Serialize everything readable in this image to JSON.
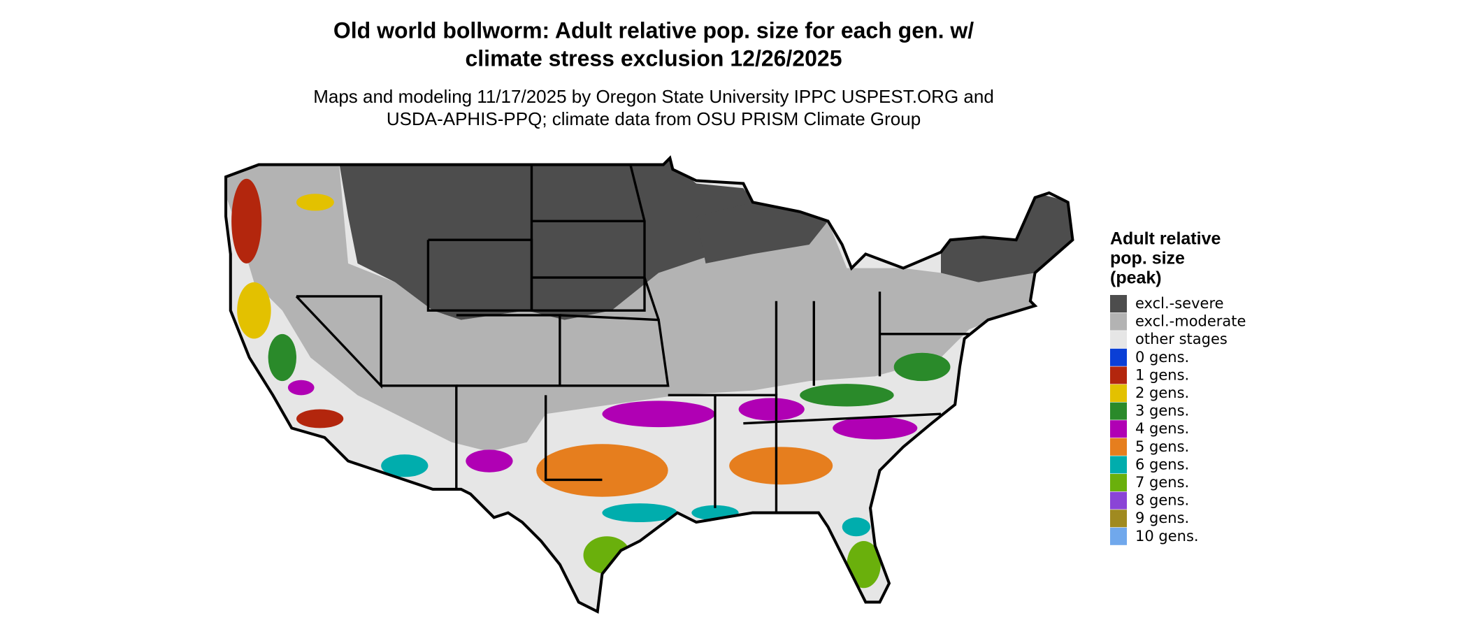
{
  "title": [
    "Old world bollworm: Adult relative pop. size for each gen. w/",
    "climate stress exclusion 12/26/2025"
  ],
  "subtitle": [
    "Maps and modeling 11/17/2025 by Oregon State University IPPC USPEST.ORG and",
    "USDA-APHIS-PPQ; climate data from OSU PRISM Climate Group"
  ],
  "legend": {
    "title": [
      "Adult relative",
      "pop. size",
      "(peak)"
    ],
    "items": [
      {
        "label": "excl.-severe",
        "color": "#4d4d4d"
      },
      {
        "label": "excl.-moderate",
        "color": "#b3b3b3"
      },
      {
        "label": "other stages",
        "color": "#e6e6e6"
      },
      {
        "label": "0 gens.",
        "color": "#0a3fd6"
      },
      {
        "label": "1 gens.",
        "color": "#b3260d"
      },
      {
        "label": "2 gens.",
        "color": "#e3c100"
      },
      {
        "label": "3 gens.",
        "color": "#2a8a2a"
      },
      {
        "label": "4 gens.",
        "color": "#b000b4"
      },
      {
        "label": "5 gens.",
        "color": "#e67e1e"
      },
      {
        "label": "6 gens.",
        "color": "#00adad"
      },
      {
        "label": "7 gens.",
        "color": "#6ab00c"
      },
      {
        "label": "8 gens.",
        "color": "#8a44d6"
      },
      {
        "label": "9 gens.",
        "color": "#a08a20"
      },
      {
        "label": "10 gens.",
        "color": "#70a8ec"
      }
    ]
  }
}
